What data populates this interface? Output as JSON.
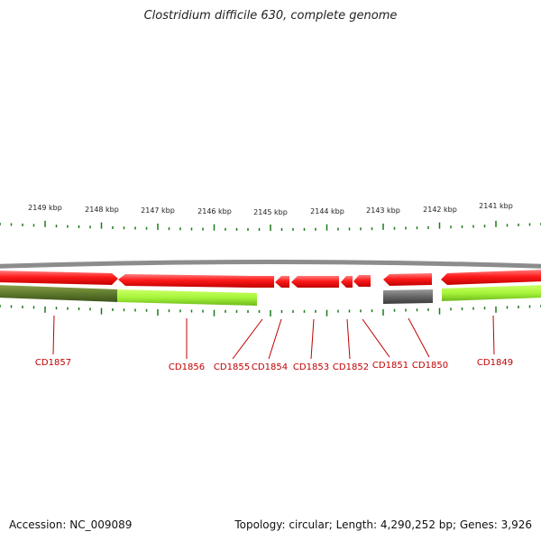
{
  "title": "Clostridium difficile 630, complete genome",
  "footer": {
    "accession": "Accession: NC_009089",
    "stats": "Topology: circular; Length: 4,290,252 bp; Genes: 3,926"
  },
  "colors": {
    "forward_gene": "#ff1a1a",
    "reverse_gene_light": "#a6f53a",
    "reverse_gene_dark": "#5e7a2c",
    "reverse_gene_gray": "#666666",
    "backbone": "#8c8c8c",
    "tick": "#1a7a1a",
    "label": "#c00000"
  },
  "kbp_labels": [
    "2149 kbp",
    "2148 kbp",
    "2147 kbp",
    "2146 kbp",
    "2145 kbp",
    "2144 kbp",
    "2143 kbp",
    "2142 kbp",
    "2141 kbp"
  ],
  "genes": [
    {
      "name": "CD1857",
      "strand": "reverse",
      "color": "reverse_gene_dark"
    },
    {
      "name": "CD1856",
      "strand": "reverse",
      "color": "reverse_gene_light"
    },
    {
      "name": "CD1855",
      "strand": "forward",
      "color": "forward_gene"
    },
    {
      "name": "CD1854",
      "strand": "forward",
      "color": "forward_gene"
    },
    {
      "name": "CD1853",
      "strand": "forward",
      "color": "forward_gene"
    },
    {
      "name": "CD1852",
      "strand": "forward",
      "color": "forward_gene"
    },
    {
      "name": "CD1851",
      "strand": "forward",
      "color": "forward_gene"
    },
    {
      "name": "CD1850",
      "strand": "reverse",
      "color": "reverse_gene_gray"
    },
    {
      "name": "CD1849",
      "strand": "reverse",
      "color": "reverse_gene_light"
    }
  ]
}
